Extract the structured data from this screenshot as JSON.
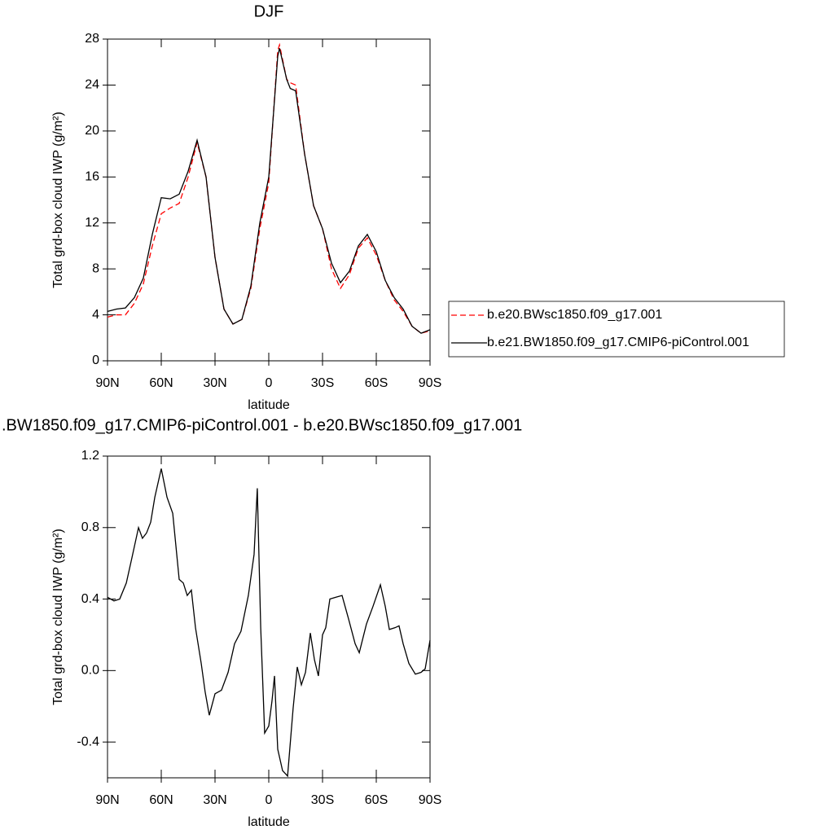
{
  "chart_data": [
    {
      "type": "line",
      "title": "DJF",
      "xlabel": "latitude",
      "ylabel": "Total grd-box cloud IWP (g/m²)",
      "x": [
        90,
        85,
        80,
        75,
        70,
        65,
        60,
        55,
        50,
        45,
        40,
        35,
        30,
        25,
        20,
        15,
        10,
        5,
        0,
        -5,
        -6,
        -10,
        -12,
        -15,
        -20,
        -25,
        -30,
        -35,
        -40,
        -45,
        -50,
        -55,
        -60,
        -65,
        -70,
        -75,
        -80,
        -85,
        -90
      ],
      "series": [
        {
          "name": "b.e20.BWsc1850.f09_g17.001",
          "color": "#ff0000",
          "dash": true,
          "values": [
            3.8,
            4.0,
            4.0,
            5.0,
            6.7,
            10,
            12.8,
            13.3,
            13.7,
            16,
            19.0,
            16,
            9,
            4.5,
            3.2,
            3.6,
            6.3,
            11.5,
            15.5,
            27.0,
            27.5,
            24.5,
            24.2,
            24.0,
            18,
            13.5,
            11.5,
            8,
            6.3,
            7.5,
            9.8,
            10.7,
            9.2,
            7,
            5.3,
            4.3,
            3,
            2.4,
            2.6
          ]
        },
        {
          "name": "b.e21.BW1850.f09_g17.CMIP6-piControl.001",
          "color": "#000000",
          "dash": false,
          "values": [
            4.3,
            4.5,
            4.6,
            5.5,
            7.2,
            11,
            14.2,
            14.1,
            14.5,
            16.5,
            19.2,
            16,
            9,
            4.5,
            3.2,
            3.6,
            6.5,
            12,
            16.0,
            26.5,
            27.2,
            24.5,
            23.7,
            23.5,
            18,
            13.5,
            11.5,
            8.5,
            6.8,
            7.8,
            10,
            11,
            9.5,
            7,
            5.5,
            4.5,
            3,
            2.4,
            2.7
          ]
        }
      ],
      "xlim": [
        90,
        -90
      ],
      "xticks": [
        {
          "value": 90,
          "label": "90N"
        },
        {
          "value": 60,
          "label": "60N"
        },
        {
          "value": 30,
          "label": "30N"
        },
        0,
        {
          "value": -30,
          "label": "30S"
        },
        {
          "value": -60,
          "label": "60S"
        },
        {
          "value": -90,
          "label": "90S"
        }
      ],
      "ylim": [
        0,
        28
      ],
      "yticks": [
        0,
        4,
        8,
        12,
        16,
        20,
        24,
        28
      ],
      "legend": "right"
    },
    {
      "type": "line",
      "title": ".BW1850.f09_g17.CMIP6-piControl.001 - b.e20.BWsc1850.f09_g17.001",
      "xlabel": "latitude",
      "ylabel": "Total grd-box cloud IWP (g/m²)",
      "x": [
        90,
        86.4,
        83.2,
        79.5,
        76.4,
        72.7,
        70.5,
        68.2,
        65.9,
        63.6,
        60,
        56.8,
        53.6,
        50,
        47.7,
        45.5,
        43.2,
        40.9,
        37.7,
        35.5,
        33.2,
        30,
        26.4,
        22.7,
        19.1,
        15.5,
        11.4,
        8.2,
        6.4,
        4.5,
        2.3,
        0,
        -1.8,
        -3.2,
        -5,
        -7.7,
        -10.5,
        -13.6,
        -15.9,
        -18.2,
        -20.5,
        -23.2,
        -25.5,
        -27.7,
        -30,
        -31.8,
        -34.1,
        -37.3,
        -40.9,
        -44.5,
        -48.2,
        -50.5,
        -54.5,
        -58.2,
        -62.3,
        -65,
        -67.3,
        -70.5,
        -72.7,
        -75,
        -78.2,
        -81.8,
        -85,
        -87.3,
        -90
      ],
      "series": [
        {
          "name": null,
          "color": "#000000",
          "dash": false,
          "values": [
            0.41,
            0.39,
            0.4,
            0.49,
            0.63,
            0.8,
            0.74,
            0.77,
            0.83,
            0.97,
            1.13,
            0.97,
            0.88,
            0.51,
            0.49,
            0.42,
            0.45,
            0.24,
            0.04,
            -0.12,
            -0.25,
            -0.13,
            -0.11,
            -0.01,
            0.15,
            0.22,
            0.42,
            0.65,
            1.02,
            0.24,
            -0.35,
            -0.31,
            -0.17,
            -0.03,
            -0.44,
            -0.56,
            -0.59,
            -0.21,
            0.02,
            -0.08,
            -0.01,
            0.21,
            0.06,
            -0.03,
            0.2,
            0.24,
            0.4,
            0.41,
            0.42,
            0.29,
            0.15,
            0.1,
            0.26,
            0.36,
            0.48,
            0.36,
            0.23,
            0.24,
            0.25,
            0.15,
            0.04,
            -0.02,
            -0.01,
            0.01,
            0.17
          ]
        }
      ],
      "xlim": [
        90,
        -90
      ],
      "xticks": [
        {
          "value": 90,
          "label": "90N"
        },
        {
          "value": 60,
          "label": "60N"
        },
        {
          "value": 30,
          "label": "30N"
        },
        0,
        {
          "value": -30,
          "label": "30S"
        },
        {
          "value": -60,
          "label": "60S"
        },
        {
          "value": -90,
          "label": "90S"
        }
      ],
      "ylim": [
        -0.6,
        1.2
      ],
      "yticks": [
        -0.4,
        {
          "value": 0,
          "label": "0.0"
        },
        0.4,
        0.8,
        1.2
      ]
    }
  ]
}
